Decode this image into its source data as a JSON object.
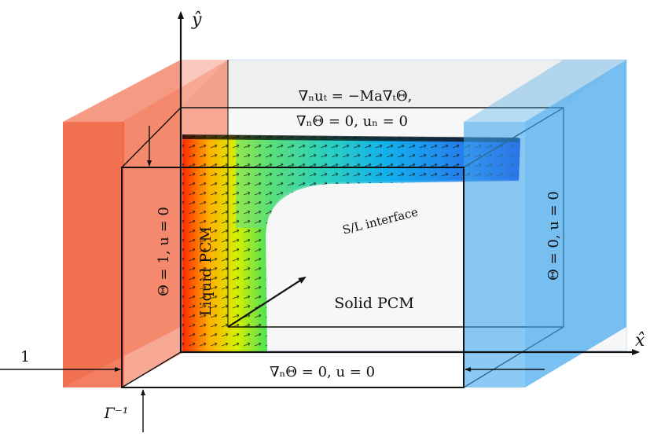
{
  "axes": {
    "y_label": "ŷ",
    "x_label": "x̂"
  },
  "top_bc": {
    "line1": "∇ₙuₜ = −Ma∇ₜΘ,",
    "line2": "∇ₙΘ = 0, uₙ = 0"
  },
  "bottom_bc": "∇ₙΘ = 0, u = 0",
  "left_wall_bc": "Θ = 1,  u = 0",
  "right_wall_bc": "Θ = 0,  u = 0",
  "liquid_label": "Liquid PCM",
  "solid_label": "Solid PCM",
  "interface_label": "S/L interface",
  "width_label": "1",
  "height_label": "Γ⁻¹",
  "colors": {
    "hot_wall": "#f0623f",
    "cold_wall": "#3ea6ec",
    "edge": "#111111"
  }
}
